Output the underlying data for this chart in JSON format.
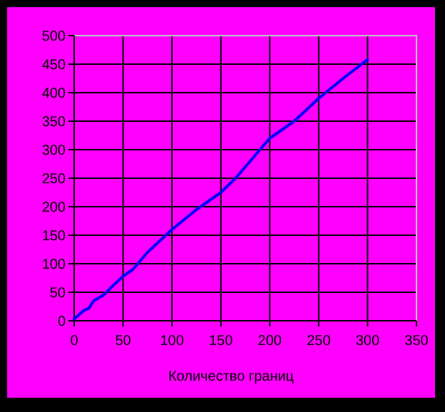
{
  "chart_data": {
    "type": "line",
    "xlabel": "Количество границ",
    "x": [
      0,
      10,
      15,
      20,
      30,
      40,
      50,
      60,
      75,
      100,
      125,
      150,
      165,
      175,
      200,
      225,
      250,
      275,
      300
    ],
    "series": [
      {
        "color": "#0000ff",
        "values": [
          3,
          18,
          22,
          35,
          45,
          62,
          78,
          90,
          120,
          160,
          195,
          225,
          250,
          270,
          320,
          350,
          390,
          425,
          458
        ]
      }
    ],
    "xlim": [
      0,
      350
    ],
    "xticks": [
      0,
      50,
      100,
      150,
      200,
      250,
      300,
      350
    ],
    "ylim": [
      0,
      500
    ],
    "yticks": [
      0,
      50,
      100,
      150,
      200,
      250,
      300,
      350,
      400,
      450,
      500
    ],
    "grid": true,
    "marker": "none",
    "line_style": "solid"
  }
}
